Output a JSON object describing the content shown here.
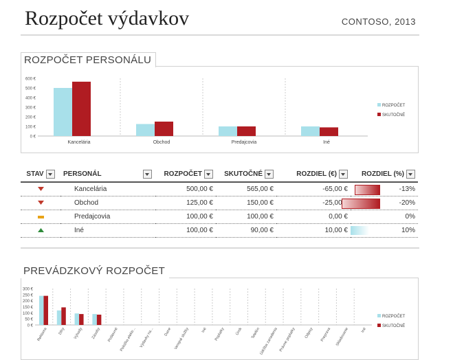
{
  "header": {
    "title": "Rozpočet výdavkov",
    "company": "CONTOSO, 2013"
  },
  "staff_section": {
    "title": "ROZPOČET PERSONÁLU",
    "chart_data": {
      "type": "bar",
      "categories": [
        "Kancelária",
        "Obchod",
        "Predajcovia",
        "Iné"
      ],
      "series": [
        {
          "name": "ROZPOČET",
          "values": [
            500,
            125,
            100,
            100
          ],
          "color": "#a8e0ea"
        },
        {
          "name": "SKUTOČNÉ",
          "values": [
            565,
            150,
            100,
            90
          ],
          "color": "#b01c22"
        }
      ],
      "yticks": [
        "0 €",
        "100 €",
        "200 €",
        "300 €",
        "400 €",
        "500 €",
        "600 €"
      ],
      "ylim": [
        0,
        600
      ],
      "legend": "right"
    }
  },
  "table": {
    "headers": [
      "STAV",
      "PERSONÁL",
      "ROZPOČET",
      "SKUTOČNÉ",
      "ROZDIEL (€)",
      "ROZDIEL (%)"
    ],
    "rows": [
      {
        "status": "down",
        "name": "Kancelária",
        "budget": "500,00 €",
        "actual": "565,00 €",
        "diff": "-65,00 €",
        "pct": "-13%",
        "pct_value": -13
      },
      {
        "status": "down",
        "name": "Obchod",
        "budget": "125,00 €",
        "actual": "150,00 €",
        "diff": "-25,00 €",
        "pct": "-20%",
        "pct_value": -20
      },
      {
        "status": "flat",
        "name": "Predajcovia",
        "budget": "100,00 €",
        "actual": "100,00 €",
        "diff": "0,00 €",
        "pct": "0%",
        "pct_value": 0
      },
      {
        "status": "up",
        "name": "Iné",
        "budget": "100,00 €",
        "actual": "90,00 €",
        "diff": "10,00 €",
        "pct": "10%",
        "pct_value": 10
      }
    ],
    "status_colors": {
      "down": "#c0392b",
      "flat": "#e8a317",
      "up": "#2e8b3a"
    }
  },
  "ops_section": {
    "title": "PREVÁDZKOVÝ ROZPOČET",
    "chart_data": {
      "type": "bar",
      "categories": [
        "Reklama",
        "Dlhy",
        "Výhody",
        "Zásoby",
        "Poštovné",
        "Položka elektr...",
        "Výdavky na...",
        "Dane",
        "Verejné služby",
        "Iné",
        "Poplatky",
        "Úrok",
        "Telefón",
        "Údržba zariadenia",
        "Právne poplatky",
        "Odpisy",
        "Preprava",
        "Skladovanie",
        "Iné"
      ],
      "series": [
        {
          "name": "ROZPOČET",
          "values": [
            240,
            120,
            95,
            90,
            0,
            0,
            0,
            0,
            0,
            0,
            0,
            0,
            0,
            0,
            0,
            0,
            0,
            0,
            0
          ],
          "color": "#a8e0ea"
        },
        {
          "name": "SKUTOČNÉ",
          "values": [
            240,
            145,
            90,
            85,
            0,
            0,
            0,
            0,
            0,
            0,
            0,
            0,
            0,
            0,
            0,
            0,
            0,
            0,
            0
          ],
          "color": "#b01c22"
        }
      ],
      "yticks": [
        "0 €",
        "50 €",
        "100 €",
        "150 €",
        "200 €",
        "250 €",
        "300 €"
      ],
      "ylim": [
        0,
        300
      ],
      "legend": "right"
    }
  }
}
